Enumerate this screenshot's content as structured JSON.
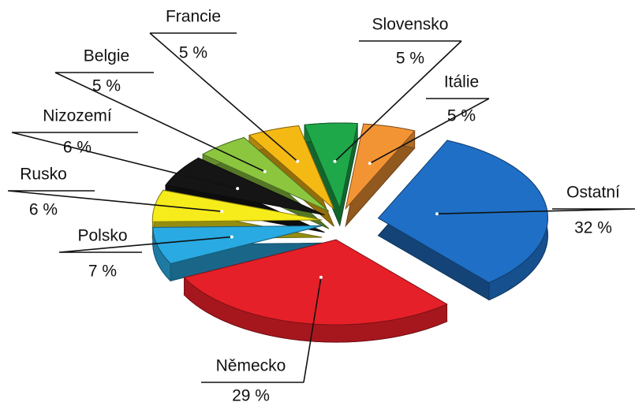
{
  "chart_data": {
    "type": "pie3d",
    "categories": [
      "Slovensko",
      "Itálie",
      "Ostatní",
      "Německo",
      "Polsko",
      "Rusko",
      "Nizozemí",
      "Belgie",
      "Francie"
    ],
    "values": [
      5,
      5,
      32,
      29,
      7,
      6,
      6,
      5,
      5
    ],
    "value_labels": [
      "5 %",
      "5 %",
      "32 %",
      "29 %",
      "7 %",
      "6 %",
      "6 %",
      "5 %",
      "5 %"
    ],
    "colors": [
      "#1fa84a",
      "#f39434",
      "#1f6fc6",
      "#e62028",
      "#29aae2",
      "#f7ec1b",
      "#151515",
      "#8cc63f",
      "#f5b914"
    ]
  }
}
